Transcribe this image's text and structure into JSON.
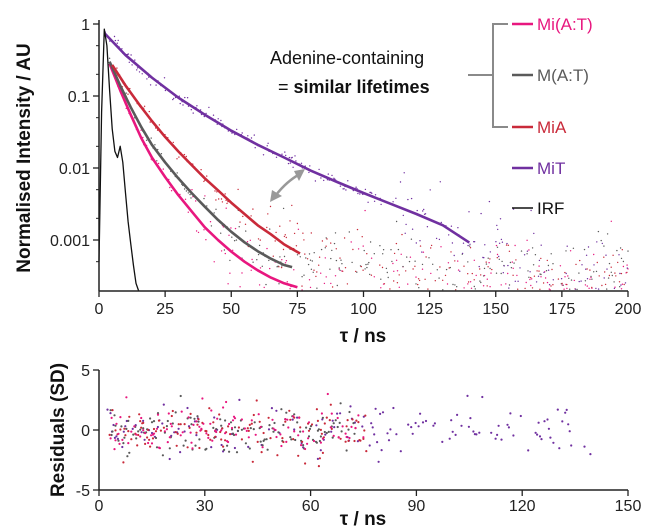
{
  "chart_data": [
    {
      "type": "line",
      "title": "",
      "xlabel": "τ / ns",
      "ylabel": "Normalised Intensity / AU",
      "xlim": [
        0,
        200
      ],
      "ylim": [
        0.0002,
        1
      ],
      "yscale": "log",
      "xticks": [
        "0",
        "25",
        "50",
        "75",
        "100",
        "125",
        "150",
        "175",
        "200"
      ],
      "yticks": [
        "1",
        "0.1",
        "0.01",
        "0.001"
      ],
      "grid": false,
      "legend_position": "right",
      "series": [
        {
          "name": "Mi(A:T)",
          "color": "#e8177f",
          "fit": [
            [
              4,
              0.28
            ],
            [
              8,
              0.12
            ],
            [
              12,
              0.055
            ],
            [
              16,
              0.026
            ],
            [
              20,
              0.014
            ],
            [
              25,
              0.0075
            ],
            [
              30,
              0.0042
            ],
            [
              35,
              0.0025
            ],
            [
              40,
              0.0015
            ],
            [
              45,
              0.001
            ],
            [
              50,
              0.00069
            ],
            [
              55,
              0.0005
            ],
            [
              60,
              0.00038
            ],
            [
              65,
              0.0003
            ],
            [
              70,
              0.00025
            ],
            [
              75,
              0.00022
            ]
          ]
        },
        {
          "name": "M(A:T)",
          "color": "#5a5a5a",
          "fit": [
            [
              4,
              0.3
            ],
            [
              8,
              0.14
            ],
            [
              12,
              0.07
            ],
            [
              16,
              0.037
            ],
            [
              20,
              0.021
            ],
            [
              25,
              0.012
            ],
            [
              30,
              0.0072
            ],
            [
              35,
              0.0045
            ],
            [
              40,
              0.0029
            ],
            [
              45,
              0.0019
            ],
            [
              50,
              0.0013
            ],
            [
              55,
              0.00093
            ],
            [
              60,
              0.0007
            ],
            [
              65,
              0.00055
            ],
            [
              70,
              0.00045
            ],
            [
              73,
              0.00042
            ]
          ]
        },
        {
          "name": "MiA",
          "color": "#c92a3a",
          "fit": [
            [
              5,
              0.27
            ],
            [
              10,
              0.14
            ],
            [
              15,
              0.078
            ],
            [
              20,
              0.045
            ],
            [
              25,
              0.027
            ],
            [
              30,
              0.017
            ],
            [
              35,
              0.011
            ],
            [
              40,
              0.0072
            ],
            [
              45,
              0.0049
            ],
            [
              50,
              0.0033
            ],
            [
              55,
              0.0023
            ],
            [
              60,
              0.0016
            ],
            [
              65,
              0.0012
            ],
            [
              70,
              0.00087
            ],
            [
              76,
              0.00065
            ]
          ]
        },
        {
          "name": "MiT",
          "color": "#7030a0",
          "fit": [
            [
              2,
              0.75
            ],
            [
              10,
              0.37
            ],
            [
              20,
              0.18
            ],
            [
              30,
              0.095
            ],
            [
              40,
              0.055
            ],
            [
              50,
              0.033
            ],
            [
              60,
              0.021
            ],
            [
              70,
              0.014
            ],
            [
              80,
              0.0092
            ],
            [
              90,
              0.0064
            ],
            [
              100,
              0.0045
            ],
            [
              110,
              0.0032
            ],
            [
              120,
              0.0023
            ],
            [
              130,
              0.0016
            ],
            [
              140,
              0.00092
            ]
          ]
        },
        {
          "name": "IRF",
          "color": "#111111",
          "fit": [
            [
              0,
              0.0005
            ],
            [
              1,
              0.06
            ],
            [
              2,
              0.85
            ],
            [
              3,
              0.5
            ],
            [
              4,
              0.12
            ],
            [
              5,
              0.035
            ],
            [
              6,
              0.017
            ],
            [
              7,
              0.014
            ],
            [
              8,
              0.02
            ],
            [
              9,
              0.012
            ],
            [
              10,
              0.0045
            ],
            [
              11,
              0.0018
            ],
            [
              12,
              0.0009
            ],
            [
              13,
              0.00045
            ],
            [
              14,
              0.00025
            ],
            [
              15,
              0.00018
            ]
          ]
        }
      ],
      "annotations": [
        {
          "text": "Adenine-containing"
        },
        {
          "text_prefix": "= ",
          "text_bold": "similar lifetimes"
        }
      ]
    },
    {
      "type": "scatter",
      "title": "",
      "xlabel": "τ / ns",
      "ylabel": "Residuals (SD)",
      "xlim": [
        0,
        150
      ],
      "ylim": [
        -5,
        5
      ],
      "xticks": [
        "0",
        "30",
        "60",
        "90",
        "120",
        "150"
      ],
      "yticks": [
        "5",
        "0",
        "-5"
      ],
      "grid": false,
      "series": [
        {
          "name": "Mi(A:T)",
          "color": "#e8177f",
          "x_range": [
            3,
            75
          ],
          "y_spread_sd": 1.0
        },
        {
          "name": "M(A:T)",
          "color": "#5a5a5a",
          "x_range": [
            3,
            73
          ],
          "y_spread_sd": 1.0
        },
        {
          "name": "MiA",
          "color": "#c92a3a",
          "x_range": [
            3,
            76
          ],
          "y_spread_sd": 1.0
        },
        {
          "name": "MiT",
          "color": "#7030a0",
          "x_range": [
            2,
            140
          ],
          "y_spread_sd": 1.0
        }
      ]
    }
  ]
}
